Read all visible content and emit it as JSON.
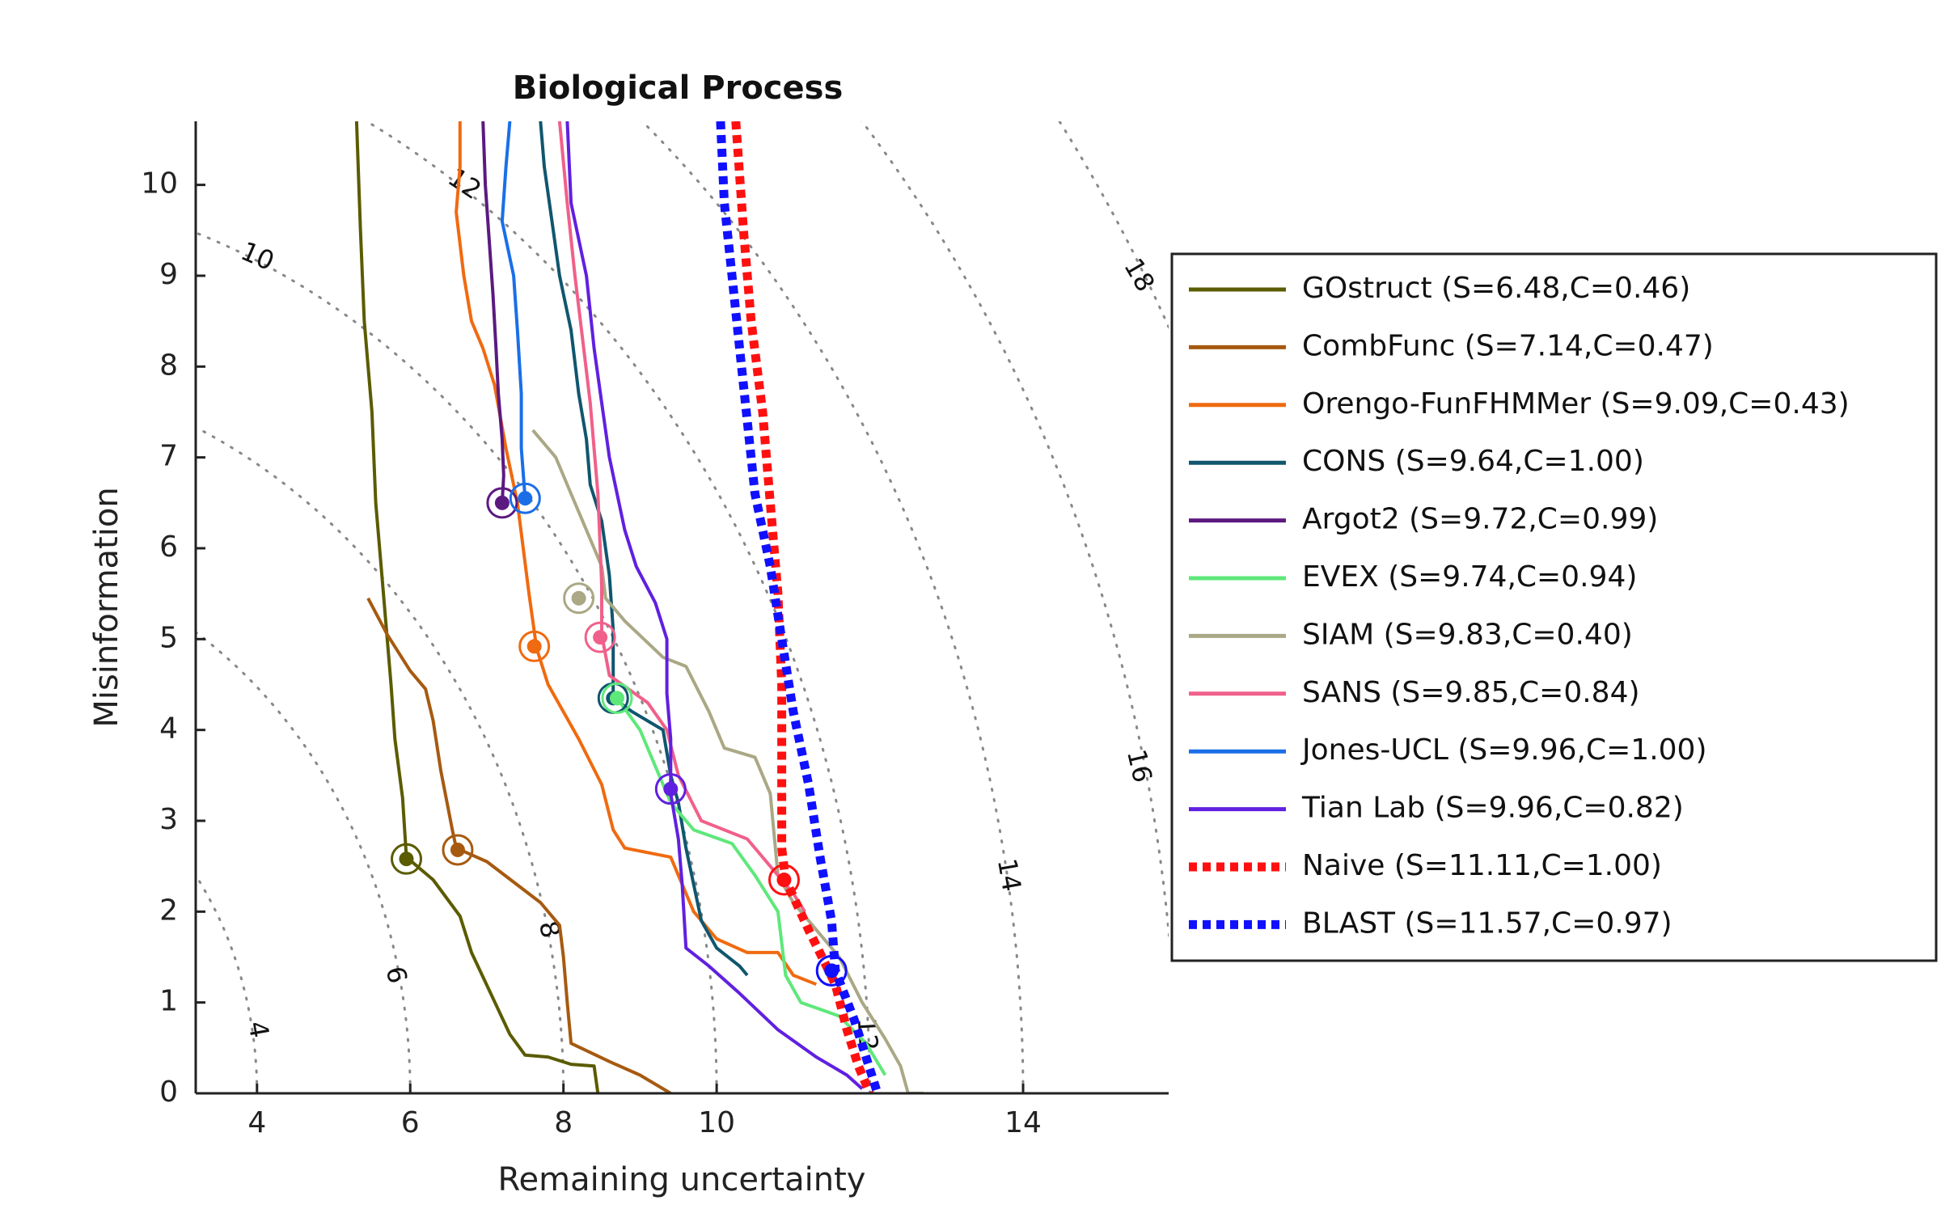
{
  "chart_data": {
    "type": "line",
    "title": "Biological Process",
    "xlabel": "Remaining uncertainty",
    "ylabel": "Misinformation",
    "xlim": [
      3.2,
      15.9
    ],
    "ylim": [
      0,
      10.7
    ],
    "x_ticks": [
      "4",
      "6",
      "8",
      "10",
      "14"
    ],
    "x_tick_values": [
      4,
      6,
      8,
      10,
      14
    ],
    "y_ticks": [
      "0",
      "1",
      "2",
      "3",
      "4",
      "5",
      "6",
      "7",
      "8",
      "9",
      "10"
    ],
    "y_tick_values": [
      0,
      1,
      2,
      3,
      4,
      5,
      6,
      7,
      8,
      9,
      10
    ],
    "contours": [
      {
        "level": 4,
        "label": "4"
      },
      {
        "level": 6,
        "label": "6"
      },
      {
        "level": 8,
        "label": "8"
      },
      {
        "level": 10,
        "label": "10"
      },
      {
        "level": 12,
        "label": "12"
      },
      {
        "level": 14,
        "label": "14"
      },
      {
        "level": 16,
        "label": "16"
      },
      {
        "level": 18,
        "label": "18"
      }
    ],
    "contour_label_positions": [
      {
        "label": "4",
        "x": 4.0,
        "y": 0.7
      },
      {
        "label": "6",
        "x": 5.8,
        "y": 1.3
      },
      {
        "label": "8",
        "x": 7.8,
        "y": 1.8
      },
      {
        "label": "10",
        "x": 4.0,
        "y": 9.2
      },
      {
        "label": "12",
        "x": 6.7,
        "y": 10.0
      },
      {
        "label": "12",
        "x": 11.95,
        "y": 0.65
      },
      {
        "label": "14",
        "x": 13.8,
        "y": 2.4
      },
      {
        "label": "16",
        "x": 15.5,
        "y": 3.6
      },
      {
        "label": "18",
        "x": 15.5,
        "y": 9.0
      }
    ],
    "grid": false,
    "legend": "right",
    "series": [
      {
        "name": "GOstruct",
        "legend_label": "GOstruct (S=6.48,C=0.46)",
        "color": "#5b5b00",
        "style": "solid",
        "points": [
          [
            5.3,
            10.7
          ],
          [
            5.35,
            9.5
          ],
          [
            5.4,
            8.5
          ],
          [
            5.5,
            7.5
          ],
          [
            5.55,
            6.5
          ],
          [
            5.65,
            5.5
          ],
          [
            5.75,
            4.5
          ],
          [
            5.8,
            3.9
          ],
          [
            5.9,
            3.25
          ],
          [
            5.95,
            2.6
          ],
          [
            6.3,
            2.35
          ],
          [
            6.65,
            1.95
          ],
          [
            6.8,
            1.55
          ],
          [
            7.05,
            1.1
          ],
          [
            7.3,
            0.65
          ],
          [
            7.5,
            0.42
          ],
          [
            7.8,
            0.4
          ],
          [
            8.1,
            0.32
          ],
          [
            8.4,
            0.3
          ],
          [
            8.45,
            0.0
          ]
        ],
        "marker": [
          5.95,
          2.58
        ]
      },
      {
        "name": "CombFunc",
        "legend_label": "CombFunc (S=7.14,C=0.47)",
        "color": "#a65a10",
        "style": "solid",
        "points": [
          [
            5.45,
            5.45
          ],
          [
            5.7,
            5.05
          ],
          [
            6.0,
            4.65
          ],
          [
            6.2,
            4.45
          ],
          [
            6.3,
            4.1
          ],
          [
            6.4,
            3.55
          ],
          [
            6.55,
            2.9
          ],
          [
            6.6,
            2.7
          ],
          [
            7.0,
            2.55
          ],
          [
            7.7,
            2.1
          ],
          [
            7.95,
            1.85
          ],
          [
            8.0,
            1.5
          ],
          [
            8.05,
            1.0
          ],
          [
            8.1,
            0.55
          ],
          [
            8.6,
            0.35
          ],
          [
            9.0,
            0.2
          ],
          [
            9.3,
            0.05
          ],
          [
            9.4,
            0.0
          ]
        ],
        "marker": [
          6.62,
          2.68
        ]
      },
      {
        "name": "Orengo-FunFHMMer",
        "legend_label": "Orengo-FunFHMMer (S=9.09,C=0.43)",
        "color": "#f06a10",
        "style": "solid",
        "points": [
          [
            6.65,
            10.7
          ],
          [
            6.65,
            10.2
          ],
          [
            6.6,
            9.7
          ],
          [
            6.7,
            9.0
          ],
          [
            6.8,
            8.5
          ],
          [
            6.95,
            8.2
          ],
          [
            7.1,
            7.8
          ],
          [
            7.25,
            7.1
          ],
          [
            7.4,
            6.5
          ],
          [
            7.55,
            5.5
          ],
          [
            7.65,
            4.9
          ],
          [
            7.8,
            4.5
          ],
          [
            8.2,
            3.9
          ],
          [
            8.5,
            3.4
          ],
          [
            8.65,
            2.9
          ],
          [
            8.8,
            2.7
          ],
          [
            9.4,
            2.6
          ],
          [
            9.7,
            2.0
          ],
          [
            10.0,
            1.7
          ],
          [
            10.4,
            1.55
          ],
          [
            10.8,
            1.55
          ],
          [
            11.0,
            1.3
          ],
          [
            11.3,
            1.2
          ]
        ],
        "marker": [
          7.62,
          4.92
        ]
      },
      {
        "name": "CONS",
        "legend_label": "CONS (S=9.64,C=1.00)",
        "color": "#10566e",
        "style": "solid",
        "points": [
          [
            7.7,
            10.7
          ],
          [
            7.75,
            10.2
          ],
          [
            7.85,
            9.6
          ],
          [
            7.95,
            9.0
          ],
          [
            8.1,
            8.4
          ],
          [
            8.2,
            7.7
          ],
          [
            8.3,
            7.2
          ],
          [
            8.35,
            6.7
          ],
          [
            8.5,
            6.3
          ],
          [
            8.6,
            5.7
          ],
          [
            8.65,
            5.1
          ],
          [
            8.65,
            4.35
          ],
          [
            8.9,
            4.2
          ],
          [
            9.3,
            4.0
          ],
          [
            9.4,
            3.5
          ],
          [
            9.5,
            3.2
          ],
          [
            9.6,
            2.7
          ],
          [
            9.7,
            2.3
          ],
          [
            9.8,
            1.9
          ],
          [
            10.0,
            1.6
          ],
          [
            10.3,
            1.4
          ],
          [
            10.4,
            1.3
          ]
        ],
        "marker": [
          8.65,
          4.35
        ]
      },
      {
        "name": "Argot2",
        "legend_label": "Argot2 (S=9.72,C=0.99)",
        "color": "#5b1a80",
        "style": "solid",
        "points": [
          [
            6.95,
            10.7
          ],
          [
            6.98,
            10.0
          ],
          [
            7.03,
            9.4
          ],
          [
            7.08,
            8.8
          ],
          [
            7.12,
            8.2
          ],
          [
            7.15,
            7.7
          ],
          [
            7.2,
            7.2
          ],
          [
            7.22,
            6.8
          ],
          [
            7.2,
            6.5
          ]
        ],
        "marker": [
          7.2,
          6.5
        ]
      },
      {
        "name": "EVEX",
        "legend_label": "EVEX (S=9.74,C=0.94)",
        "color": "#5ee87a",
        "style": "solid",
        "points": [
          [
            8.7,
            4.35
          ],
          [
            9.0,
            4.0
          ],
          [
            9.2,
            3.6
          ],
          [
            9.4,
            3.2
          ],
          [
            9.7,
            2.9
          ],
          [
            10.2,
            2.75
          ],
          [
            10.5,
            2.4
          ],
          [
            10.8,
            2.0
          ],
          [
            10.9,
            1.3
          ],
          [
            11.1,
            1.0
          ],
          [
            11.6,
            0.85
          ],
          [
            11.95,
            0.55
          ],
          [
            12.2,
            0.2
          ]
        ],
        "marker": [
          8.7,
          4.35
        ]
      },
      {
        "name": "SIAM",
        "legend_label": "SIAM (S=9.83,C=0.40)",
        "color": "#aaa885",
        "style": "solid",
        "points": [
          [
            7.6,
            7.3
          ],
          [
            7.9,
            7.0
          ],
          [
            8.1,
            6.6
          ],
          [
            8.3,
            6.2
          ],
          [
            8.5,
            5.8
          ],
          [
            8.55,
            5.45
          ],
          [
            8.8,
            5.2
          ],
          [
            9.3,
            4.8
          ],
          [
            9.6,
            4.7
          ],
          [
            9.9,
            4.2
          ],
          [
            10.1,
            3.8
          ],
          [
            10.5,
            3.7
          ],
          [
            10.7,
            3.3
          ],
          [
            10.8,
            2.4
          ],
          [
            11.0,
            2.1
          ],
          [
            11.3,
            1.8
          ],
          [
            11.6,
            1.5
          ],
          [
            11.9,
            1.0
          ],
          [
            12.2,
            0.6
          ],
          [
            12.4,
            0.3
          ],
          [
            12.5,
            0.0
          ],
          [
            12.7,
            0.0
          ]
        ],
        "marker": [
          8.2,
          5.45
        ]
      },
      {
        "name": "SANS",
        "legend_label": "SANS (S=9.85,C=0.84)",
        "color": "#f0608a",
        "style": "solid",
        "points": [
          [
            7.95,
            10.7
          ],
          [
            8.05,
            9.8
          ],
          [
            8.15,
            9.0
          ],
          [
            8.25,
            8.3
          ],
          [
            8.35,
            7.6
          ],
          [
            8.45,
            6.6
          ],
          [
            8.5,
            5.6
          ],
          [
            8.5,
            5.05
          ],
          [
            8.6,
            4.6
          ],
          [
            9.1,
            4.3
          ],
          [
            9.35,
            4.0
          ],
          [
            9.5,
            3.5
          ],
          [
            9.8,
            3.0
          ],
          [
            10.4,
            2.8
          ],
          [
            10.7,
            2.5
          ],
          [
            11.0,
            2.2
          ],
          [
            11.15,
            2.0
          ]
        ],
        "marker": [
          8.48,
          5.02
        ]
      },
      {
        "name": "Jones-UCL",
        "legend_label": "Jones-UCL (S=9.96,C=1.00)",
        "color": "#1a6fe8",
        "style": "solid",
        "points": [
          [
            7.3,
            10.7
          ],
          [
            7.25,
            10.2
          ],
          [
            7.2,
            9.6
          ],
          [
            7.35,
            9.0
          ],
          [
            7.4,
            8.4
          ],
          [
            7.45,
            7.7
          ],
          [
            7.45,
            7.1
          ],
          [
            7.5,
            6.55
          ]
        ],
        "marker": [
          7.5,
          6.55
        ]
      },
      {
        "name": "Tian Lab",
        "legend_label": "Tian Lab (S=9.96,C=0.82)",
        "color": "#6020e0",
        "style": "solid",
        "points": [
          [
            8.05,
            10.7
          ],
          [
            8.1,
            9.8
          ],
          [
            8.3,
            9.0
          ],
          [
            8.4,
            8.2
          ],
          [
            8.5,
            7.6
          ],
          [
            8.6,
            7.0
          ],
          [
            8.7,
            6.6
          ],
          [
            8.8,
            6.2
          ],
          [
            8.95,
            5.8
          ],
          [
            9.2,
            5.4
          ],
          [
            9.35,
            5.0
          ],
          [
            9.35,
            4.4
          ],
          [
            9.4,
            3.9
          ],
          [
            9.4,
            3.3
          ],
          [
            9.5,
            2.8
          ],
          [
            9.55,
            2.3
          ],
          [
            9.6,
            1.6
          ],
          [
            9.9,
            1.4
          ],
          [
            10.3,
            1.1
          ],
          [
            10.8,
            0.7
          ],
          [
            11.3,
            0.4
          ],
          [
            11.7,
            0.2
          ],
          [
            11.9,
            0.05
          ]
        ],
        "marker": [
          9.4,
          3.35
        ]
      },
      {
        "name": "Naive",
        "legend_label": "Naive (S=11.11,C=1.00)",
        "color": "#ff1010",
        "style": "dotted",
        "points": [
          [
            10.25,
            10.7
          ],
          [
            10.35,
            9.5
          ],
          [
            10.45,
            8.5
          ],
          [
            10.6,
            7.5
          ],
          [
            10.7,
            6.5
          ],
          [
            10.8,
            5.5
          ],
          [
            10.85,
            4.5
          ],
          [
            10.85,
            3.5
          ],
          [
            10.85,
            2.7
          ],
          [
            10.9,
            2.35
          ],
          [
            11.2,
            1.8
          ],
          [
            11.55,
            1.2
          ],
          [
            11.7,
            0.7
          ],
          [
            11.85,
            0.3
          ],
          [
            12.0,
            0.0
          ]
        ],
        "marker": [
          10.88,
          2.35
        ]
      },
      {
        "name": "BLAST",
        "legend_label": "BLAST (S=11.57,C=0.97)",
        "color": "#1010ff",
        "style": "dotted",
        "points": [
          [
            10.05,
            10.7
          ],
          [
            10.1,
            9.8
          ],
          [
            10.2,
            9.0
          ],
          [
            10.3,
            8.2
          ],
          [
            10.4,
            7.4
          ],
          [
            10.5,
            6.6
          ],
          [
            10.7,
            5.8
          ],
          [
            10.85,
            5.0
          ],
          [
            11.0,
            4.2
          ],
          [
            11.2,
            3.4
          ],
          [
            11.35,
            2.6
          ],
          [
            11.5,
            1.9
          ],
          [
            11.55,
            1.35
          ],
          [
            11.8,
            0.8
          ],
          [
            11.95,
            0.4
          ],
          [
            12.1,
            0.0
          ]
        ],
        "marker": [
          11.5,
          1.35
        ]
      }
    ]
  }
}
